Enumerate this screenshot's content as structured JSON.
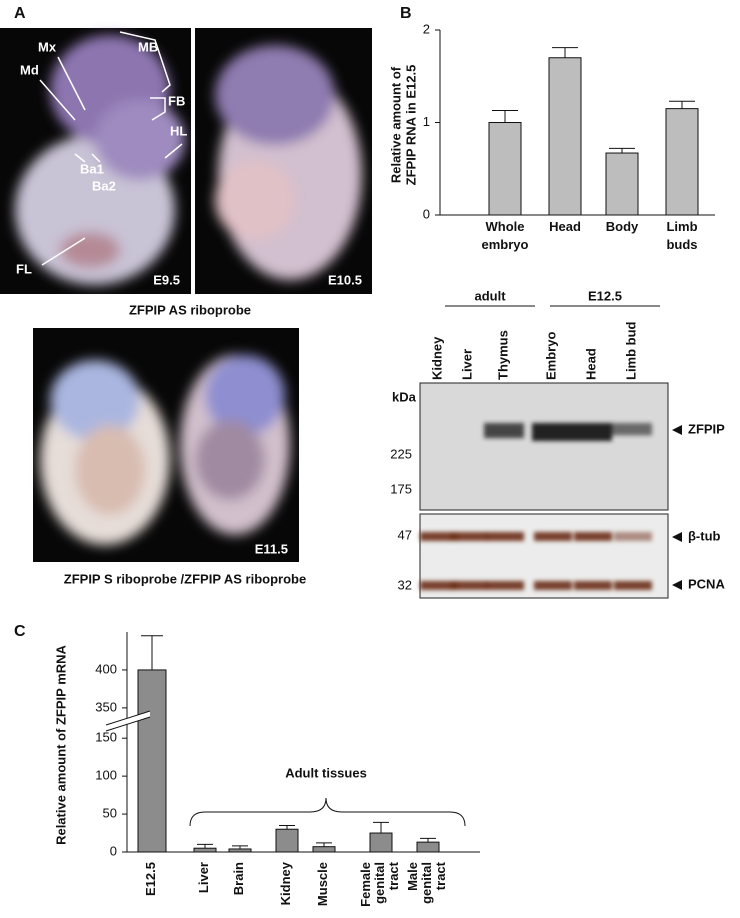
{
  "panel_labels": [
    "A",
    "B",
    "C"
  ],
  "panel_a": {
    "labels": {
      "mx": "Mx",
      "md": "Md",
      "mb": "MB",
      "fb": "FB",
      "hl": "HL",
      "ba1": "Ba1",
      "ba2": "Ba2",
      "fl": "FL"
    },
    "stages": [
      "E9.5",
      "E10.5",
      "E11.5"
    ],
    "captions": [
      "ZFPIP AS riboprobe",
      "ZFPIP S riboprobe /ZFPIP AS riboprobe"
    ]
  },
  "western": {
    "groups": [
      "adult",
      "E12.5"
    ],
    "lanes": [
      "Kidney",
      "Liver",
      "Thymus",
      "Embryo",
      "Head",
      "Limb bud"
    ],
    "unit": "kDa",
    "markers": [
      225,
      175,
      47,
      32
    ],
    "bands": [
      "ZFPIP",
      "β-tub",
      "PCNA"
    ]
  },
  "chart_data": [
    {
      "type": "bar",
      "y_label": "Relative amount of ZFPIP RNA in E12.5",
      "categories": [
        "Whole embryo",
        "Head",
        "Body",
        "Limb buds"
      ],
      "values": [
        1.0,
        1.7,
        0.67,
        1.15
      ],
      "errors": [
        0.13,
        0.11,
        0.05,
        0.08
      ],
      "color": "#bdbdbd",
      "ylim": [
        0,
        2
      ],
      "yticks": [
        0,
        1,
        2
      ]
    },
    {
      "type": "bar",
      "y_label": "Relative amount of ZFPIP mRNA",
      "annotation": "Adult tissues",
      "categories": [
        "E12.5",
        "Liver",
        "Brain",
        "Kidney",
        "Muscle",
        "Female genital tract",
        "Male genital tract"
      ],
      "values": [
        400,
        5,
        4,
        30,
        7,
        25,
        13
      ],
      "errors": [
        45,
        5,
        4,
        5,
        5,
        14,
        5
      ],
      "color": "#8c8c8c",
      "ylim": [
        0,
        450
      ],
      "axis_break": [
        170,
        330
      ],
      "yticks": [
        0,
        50,
        100,
        150,
        350,
        400
      ]
    }
  ]
}
